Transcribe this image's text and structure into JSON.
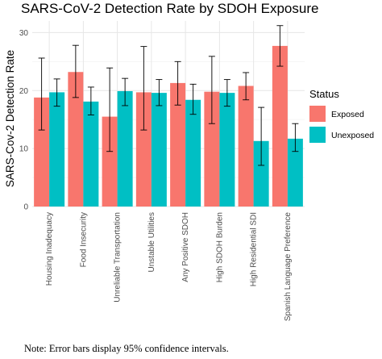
{
  "chart_data": {
    "type": "bar",
    "title": "SARS-CoV-2 Detection Rate by SDOH Exposure",
    "xlabel": "",
    "ylabel": "SARS-Cov-2 Detection Rate",
    "ylim": [
      0,
      32
    ],
    "yticks": [
      0,
      10,
      20,
      30
    ],
    "grid": true,
    "legend": {
      "title": "Status",
      "placement": "right"
    },
    "categories": [
      "Housing Inadequacy",
      "Food Insecurity",
      "Unreliable Transportation",
      "Unstable Utilities",
      "Any Positive SDOH",
      "High SDOH Burden",
      "High Residential SDI",
      "Spanish Language Preference"
    ],
    "series": [
      {
        "name": "Exposed",
        "color": "#F8766D",
        "values": [
          18.8,
          23.2,
          15.5,
          19.7,
          21.3,
          19.8,
          20.8,
          27.7
        ],
        "ci_low": [
          13.2,
          18.8,
          9.5,
          13.2,
          17.5,
          14.3,
          18.4,
          24.2
        ],
        "ci_high": [
          25.6,
          27.8,
          23.9,
          27.6,
          25.0,
          25.9,
          23.1,
          31.2
        ]
      },
      {
        "name": "Unexposed",
        "color": "#00BFC4",
        "values": [
          19.7,
          18.1,
          19.9,
          19.6,
          18.4,
          19.6,
          11.3,
          11.7
        ],
        "ci_low": [
          17.3,
          15.8,
          17.4,
          17.4,
          15.9,
          17.3,
          7.1,
          9.5
        ],
        "ci_high": [
          22.0,
          20.6,
          22.1,
          21.9,
          21.1,
          21.9,
          17.1,
          14.3
        ]
      }
    ]
  },
  "note": "Note: Error bars display 95% confidence intervals."
}
